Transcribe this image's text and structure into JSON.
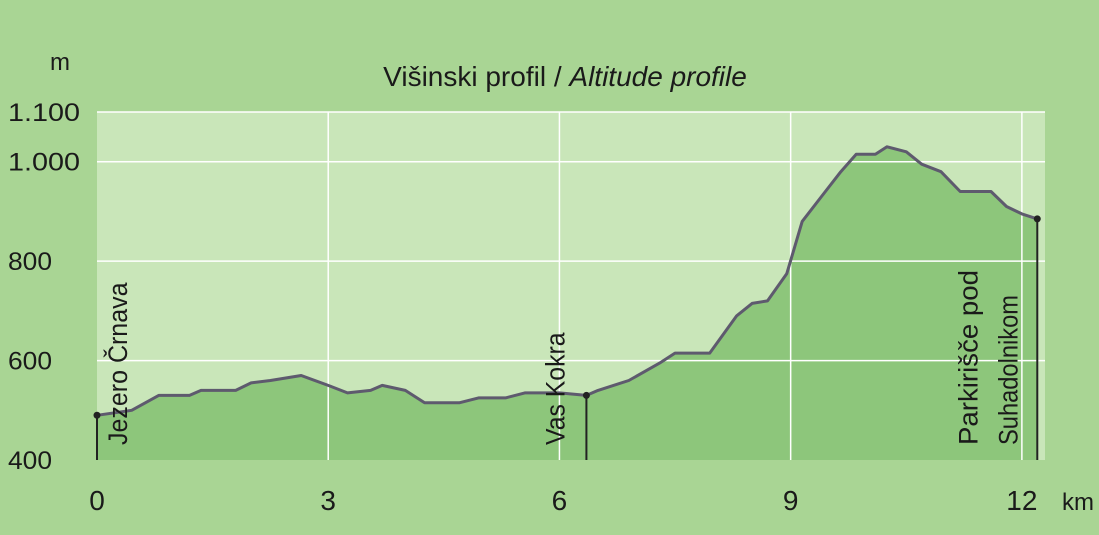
{
  "chart_data": {
    "type": "area",
    "title": "Višinski profil /",
    "title_italic": "Altitude profile",
    "y_unit": "m",
    "x_unit": "km",
    "x": [
      0,
      0.45,
      0.8,
      1.2,
      1.35,
      1.8,
      2.0,
      2.25,
      2.65,
      3.0,
      3.25,
      3.55,
      3.7,
      4.0,
      4.25,
      4.7,
      4.95,
      5.3,
      5.55,
      6.0,
      6.35,
      6.5,
      6.9,
      7.3,
      7.5,
      7.95,
      8.3,
      8.5,
      8.7,
      8.95,
      9.15,
      9.4,
      9.65,
      9.85,
      10.1,
      10.25,
      10.5,
      10.7,
      10.95,
      11.2,
      11.6,
      11.8,
      12.0,
      12.2
    ],
    "values": [
      490,
      500,
      530,
      530,
      540,
      540,
      555,
      560,
      570,
      550,
      535,
      540,
      550,
      540,
      515,
      515,
      525,
      525,
      535,
      535,
      530,
      540,
      560,
      595,
      615,
      615,
      690,
      715,
      720,
      775,
      880,
      930,
      980,
      1015,
      1015,
      1030,
      1020,
      995,
      980,
      940,
      940,
      910,
      895,
      885
    ],
    "color": "#8dc67b",
    "line_color": "#5e5a6e",
    "xlim": [
      0,
      12.3
    ],
    "ylim": [
      400,
      1100
    ],
    "xticks": [
      0,
      3,
      6,
      9,
      12
    ],
    "yticks": [
      400,
      600,
      800,
      {
        "value": 1000,
        "label": "1.000"
      },
      {
        "value": 1100,
        "label": "1.100"
      }
    ],
    "grid": true,
    "annotations": [
      {
        "x": 0,
        "y": 490,
        "label": [
          "Jezero Črnava"
        ]
      },
      {
        "x": 6.35,
        "y": 530,
        "label": [
          "Vas Kokra"
        ]
      },
      {
        "x": 12.2,
        "y": 885,
        "label": [
          "Parkirišče pod",
          "Suhadolnikom"
        ]
      }
    ]
  }
}
